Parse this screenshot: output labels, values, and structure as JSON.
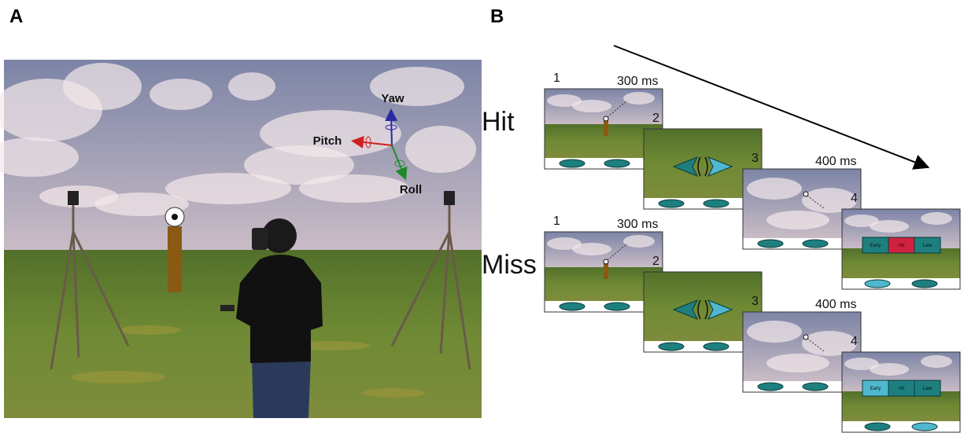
{
  "panels": [
    {
      "label": "A",
      "axes": {
        "yaw": "Yaw",
        "pitch": "Pitch",
        "roll": "Roll"
      }
    },
    {
      "label": "B",
      "rows": [
        {
          "condition": "Hit",
          "frames": [
            {
              "number": 1,
              "duration": "300 ms"
            },
            {
              "number": 2
            },
            {
              "number": 3,
              "duration": "400 ms"
            },
            {
              "number": 4,
              "feedback": [
                "Early",
                "Hit",
                "Late"
              ]
            }
          ]
        },
        {
          "condition": "Miss",
          "frames": [
            {
              "number": 1,
              "duration": "300 ms"
            },
            {
              "number": 2
            },
            {
              "number": 3,
              "duration": "400 ms"
            },
            {
              "number": 4,
              "feedback": [
                "Early",
                "Hit",
                "Late"
              ]
            }
          ]
        }
      ]
    }
  ]
}
